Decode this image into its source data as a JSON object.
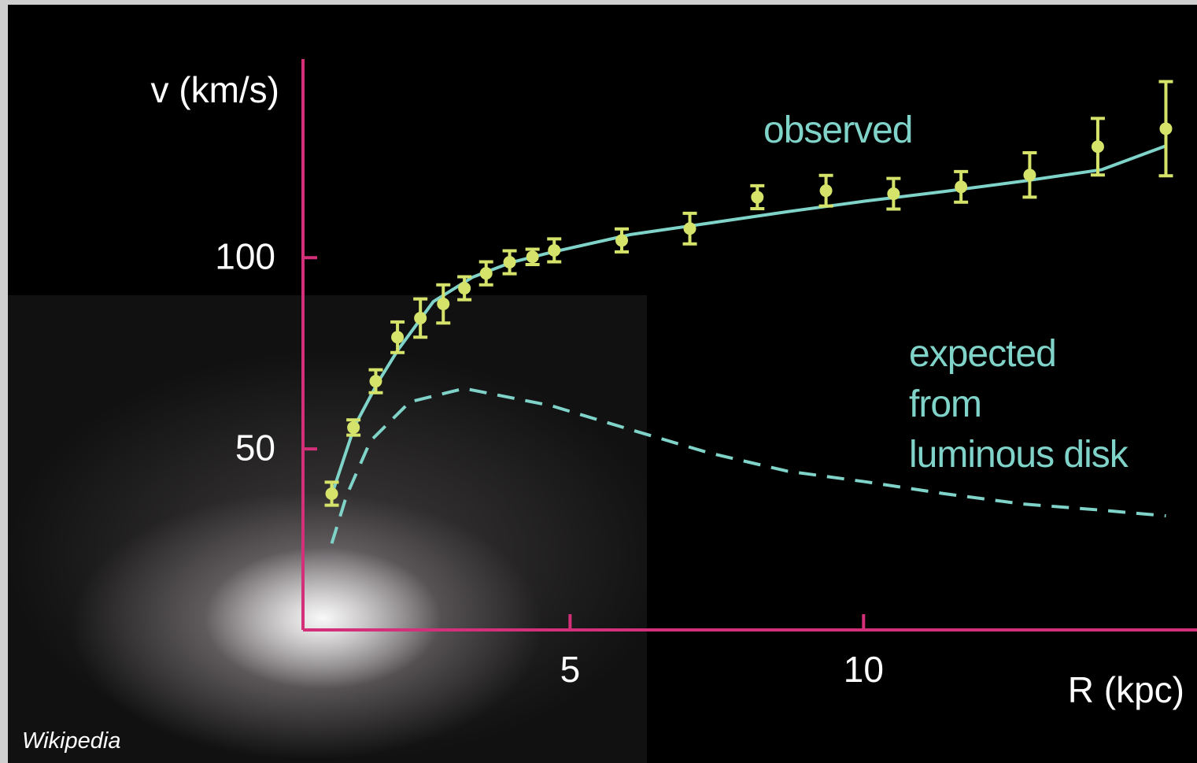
{
  "chart_data": {
    "type": "line",
    "xlabel": "R (kpc)",
    "ylabel": "v (km/s)",
    "xlim": [
      0.45,
      15.68
    ],
    "ylim": [
      2.7,
      151.9
    ],
    "xticks": [
      5,
      10
    ],
    "yticks": [
      50,
      100
    ],
    "axis_color": "#d4307a",
    "credit": "Wikipedia",
    "series": [
      {
        "name": "observed",
        "color": "#7fd3c9",
        "style": "solid",
        "x": [
          0.94,
          1.33,
          1.73,
          2.06,
          2.67,
          3.34,
          4.01,
          4.68,
          6.02,
          7.36,
          8.7,
          10.04,
          11.38,
          12.72,
          14.06,
          15.15
        ],
        "values": [
          38,
          56,
          67.5,
          75.7,
          88.5,
          94.9,
          98.8,
          101.4,
          106,
          109,
          112,
          114.8,
          117.3,
          120,
          123,
          129.2
        ]
      },
      {
        "name": "expected\nfrom\nluminous disk",
        "color": "#7fd3c9",
        "style": "dashed",
        "x": [
          0.94,
          1.19,
          1.6,
          2.27,
          3.2,
          4.68,
          6.02,
          7.36,
          8.7,
          10.04,
          11.38,
          12.72,
          14.06,
          15.15
        ],
        "values": [
          25.3,
          37.7,
          52.1,
          62.3,
          65.8,
          61.3,
          55.1,
          49,
          44.2,
          41.4,
          38.3,
          35.6,
          34,
          32.5
        ]
      },
      {
        "color": "#d6e36a",
        "style": "points",
        "x": [
          0.94,
          1.31,
          1.69,
          2.06,
          2.45,
          2.84,
          3.2,
          3.57,
          3.97,
          4.36,
          4.73,
          5.88,
          7.04,
          8.19,
          9.36,
          10.51,
          11.66,
          12.83,
          13.99,
          15.15
        ],
        "values": [
          38.3,
          55.6,
          67.7,
          79.2,
          84.2,
          87.9,
          92,
          95.9,
          98.8,
          100.2,
          101.9,
          104.5,
          107.6,
          115.8,
          117.5,
          116.7,
          118.5,
          121.6,
          129,
          133.7
        ],
        "errors": [
          3,
          2,
          3,
          4,
          5,
          5,
          3,
          3,
          3,
          2,
          3,
          3,
          4,
          3,
          4,
          4,
          4,
          5.8,
          7.4,
          12.3
        ]
      }
    ]
  }
}
